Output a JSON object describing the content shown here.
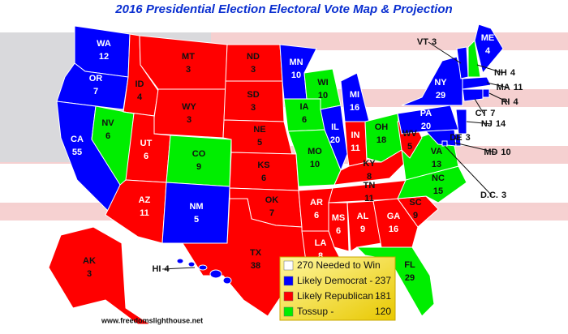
{
  "header": {
    "title": "2016 Presidential Election Electoral Vote Map & Projection",
    "site": "www.freedomslighthouse.net"
  },
  "states": [
    {
      "label": "WA",
      "votes": 12,
      "color": "#0000ff",
      "label_color": "#ffffff"
    },
    {
      "label": "OR",
      "votes": 7,
      "color": "#0000ff",
      "label_color": "#ffffff"
    },
    {
      "label": "CA",
      "votes": 55,
      "color": "#0000ff",
      "label_color": "#ffffff"
    },
    {
      "label": "NV",
      "votes": 6,
      "color": "#00ee00",
      "label_color": "#111111"
    },
    {
      "label": "ID",
      "votes": 4,
      "color": "#ff0000",
      "label_color": "#111111"
    },
    {
      "label": "MT",
      "votes": 3,
      "color": "#ff0000",
      "label_color": "#111111"
    },
    {
      "label": "WY",
      "votes": 3,
      "color": "#ff0000",
      "label_color": "#111111"
    },
    {
      "label": "UT",
      "votes": 6,
      "color": "#ff0000",
      "label_color": "#ffffff"
    },
    {
      "label": "AZ",
      "votes": 11,
      "color": "#ff0000",
      "label_color": "#ffffff"
    },
    {
      "label": "CO",
      "votes": 9,
      "color": "#00ee00",
      "label_color": "#111111"
    },
    {
      "label": "NM",
      "votes": 5,
      "color": "#0000ff",
      "label_color": "#ffffff"
    },
    {
      "label": "ND",
      "votes": 3,
      "color": "#ff0000",
      "label_color": "#111111"
    },
    {
      "label": "SD",
      "votes": 3,
      "color": "#ff0000",
      "label_color": "#111111"
    },
    {
      "label": "NE",
      "votes": 5,
      "color": "#ff0000",
      "label_color": "#111111"
    },
    {
      "label": "KS",
      "votes": 6,
      "color": "#ff0000",
      "label_color": "#111111"
    },
    {
      "label": "OK",
      "votes": 7,
      "color": "#ff0000",
      "label_color": "#111111"
    },
    {
      "label": "TX",
      "votes": 38,
      "color": "#ff0000",
      "label_color": "#111111"
    },
    {
      "label": "MN",
      "votes": 10,
      "color": "#0000ff",
      "label_color": "#ffffff"
    },
    {
      "label": "IA",
      "votes": 6,
      "color": "#00ee00",
      "label_color": "#111111"
    },
    {
      "label": "MO",
      "votes": 10,
      "color": "#00ee00",
      "label_color": "#111111"
    },
    {
      "label": "AR",
      "votes": 6,
      "color": "#ff0000",
      "label_color": "#ffffff"
    },
    {
      "label": "LA",
      "votes": 8,
      "color": "#ff0000",
      "label_color": "#ffffff"
    },
    {
      "label": "WI",
      "votes": 10,
      "color": "#00ee00",
      "label_color": "#111111"
    },
    {
      "label": "IL",
      "votes": 20,
      "color": "#0000ff",
      "label_color": "#ffffff"
    },
    {
      "label": "MI",
      "votes": 16,
      "color": "#0000ff",
      "label_color": "#ffffff"
    },
    {
      "label": "IN",
      "votes": 11,
      "color": "#ff0000",
      "label_color": "#ffffff"
    },
    {
      "label": "OH",
      "votes": 18,
      "color": "#00ee00",
      "label_color": "#111111"
    },
    {
      "label": "KY",
      "votes": 8,
      "color": "#ff0000",
      "label_color": "#111111"
    },
    {
      "label": "TN",
      "votes": 11,
      "color": "#ff0000",
      "label_color": "#111111"
    },
    {
      "label": "MS",
      "votes": 6,
      "color": "#ff0000",
      "label_color": "#ffffff"
    },
    {
      "label": "AL",
      "votes": 9,
      "color": "#ff0000",
      "label_color": "#ffffff"
    },
    {
      "label": "GA",
      "votes": 16,
      "color": "#ff0000",
      "label_color": "#ffffff"
    },
    {
      "label": "FL",
      "votes": 29,
      "color": "#00ee00",
      "label_color": "#111111"
    },
    {
      "label": "SC",
      "votes": 9,
      "color": "#ff0000",
      "label_color": "#111111"
    },
    {
      "label": "NC",
      "votes": 15,
      "color": "#00ee00",
      "label_color": "#111111"
    },
    {
      "label": "VA",
      "votes": 13,
      "color": "#00ee00",
      "label_color": "#111111"
    },
    {
      "label": "WV",
      "votes": 5,
      "color": "#ff0000",
      "label_color": "#111111"
    },
    {
      "label": "PA",
      "votes": 20,
      "color": "#0000ff",
      "label_color": "#ffffff"
    },
    {
      "label": "NY",
      "votes": 29,
      "color": "#0000ff",
      "label_color": "#ffffff"
    },
    {
      "label": "VT",
      "votes": 3,
      "color": "#0000ff",
      "label_color": "#111111"
    },
    {
      "label": "NH",
      "votes": 4,
      "color": "#00ee00",
      "label_color": "#111111"
    },
    {
      "label": "ME",
      "votes": 4,
      "color": "#0000ff",
      "label_color": "#ffffff"
    },
    {
      "label": "MA",
      "votes": 11,
      "color": "#0000ff",
      "label_color": "#111111"
    },
    {
      "label": "RI",
      "votes": 4,
      "color": "#0000ff",
      "label_color": "#111111"
    },
    {
      "label": "CT",
      "votes": 7,
      "color": "#0000ff",
      "label_color": "#111111"
    },
    {
      "label": "NJ",
      "votes": 14,
      "color": "#0000ff",
      "label_color": "#111111"
    },
    {
      "label": "DE",
      "votes": 3,
      "color": "#0000ff",
      "label_color": "#111111"
    },
    {
      "label": "MD",
      "votes": 10,
      "color": "#0000ff",
      "label_color": "#111111"
    },
    {
      "label": "D.C.",
      "votes": 3,
      "color": "#0000ff",
      "label_color": "#111111"
    },
    {
      "label": "AK",
      "votes": 3,
      "color": "#ff0000",
      "label_color": "#111111"
    },
    {
      "label": "HI",
      "votes": 4,
      "color": "#0000ff",
      "label_color": "#111111"
    }
  ],
  "legend": {
    "items": [
      {
        "name": "270 Needed to Win",
        "color": "#ffffff"
      },
      {
        "name": "Likely Democrat -",
        "value": 237,
        "color": "#0000ff"
      },
      {
        "name": "Likely Republican -",
        "value": 181,
        "color": "#ff0000"
      },
      {
        "name": "Tossup -",
        "value": 120,
        "color": "#00ee00"
      }
    ]
  }
}
